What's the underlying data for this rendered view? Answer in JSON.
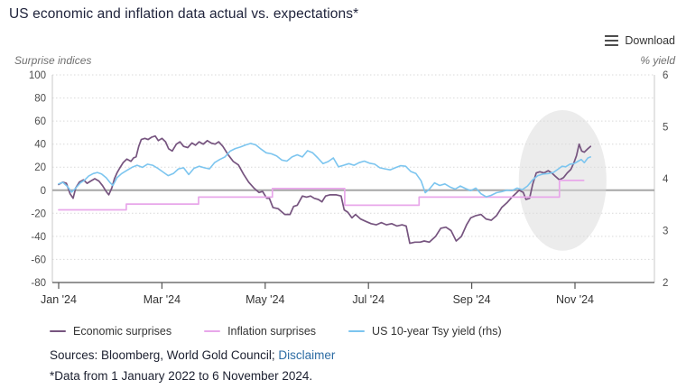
{
  "title": {
    "text": "US economic and inflation data actual vs. expectations*"
  },
  "toolbar": {
    "download_label": "Download"
  },
  "footer": {
    "sources_prefix": "Sources: Bloomberg, World Gold Council; ",
    "disclaimer_link": "Disclaimer",
    "note": "*Data from 1 January 2022 to 6 November 2024."
  },
  "chart_data": {
    "type": "line",
    "title": "US economic and inflation data actual vs. expectations*",
    "x_unit": "months since 1 Jan 2024",
    "x_axis": {
      "tick_months": [
        0,
        2,
        4,
        6,
        8,
        10
      ],
      "labels": [
        "Jan '24",
        "Mar '24",
        "May '24",
        "Jul '24",
        "Sep '24",
        "Nov '24"
      ]
    },
    "y_left": {
      "title": "Surprise indices",
      "min": -80,
      "max": 100,
      "tick_step": 20,
      "zero_line": 0
    },
    "y_right": {
      "title": "% yield",
      "min": 2,
      "max": 6,
      "tick_step": 1
    },
    "grid": "dotted",
    "legend_position": "bottom-left",
    "highlight_ellipse": {
      "cx_month": 9.76,
      "cy_value": 8.5,
      "rx_months": 0.85,
      "ry_values": 61,
      "color": "#d9d9d9",
      "opacity": 0.5
    },
    "series": [
      {
        "name": "Economic surprises",
        "axis": "left",
        "color": "#76547f",
        "width": 1.7,
        "points": [
          [
            0.0,
            5
          ],
          [
            0.08,
            7
          ],
          [
            0.15,
            6
          ],
          [
            0.22,
            -3
          ],
          [
            0.28,
            -7
          ],
          [
            0.33,
            2
          ],
          [
            0.4,
            7
          ],
          [
            0.48,
            9
          ],
          [
            0.55,
            6
          ],
          [
            0.62,
            8
          ],
          [
            0.7,
            10
          ],
          [
            0.78,
            8
          ],
          [
            0.85,
            4
          ],
          [
            0.92,
            -1
          ],
          [
            0.97,
            -4
          ],
          [
            1.03,
            2
          ],
          [
            1.08,
            10
          ],
          [
            1.13,
            15
          ],
          [
            1.18,
            19
          ],
          [
            1.25,
            24
          ],
          [
            1.32,
            27
          ],
          [
            1.4,
            25
          ],
          [
            1.45,
            28
          ],
          [
            1.5,
            29
          ],
          [
            1.55,
            38
          ],
          [
            1.6,
            44
          ],
          [
            1.67,
            45
          ],
          [
            1.73,
            44
          ],
          [
            1.8,
            46
          ],
          [
            1.87,
            47
          ],
          [
            1.93,
            43
          ],
          [
            2.0,
            45
          ],
          [
            2.07,
            42
          ],
          [
            2.13,
            36
          ],
          [
            2.2,
            34
          ],
          [
            2.28,
            40
          ],
          [
            2.35,
            42
          ],
          [
            2.42,
            38
          ],
          [
            2.5,
            37
          ],
          [
            2.58,
            41
          ],
          [
            2.65,
            39
          ],
          [
            2.72,
            42
          ],
          [
            2.8,
            40
          ],
          [
            2.88,
            43
          ],
          [
            2.95,
            41
          ],
          [
            3.03,
            40
          ],
          [
            3.1,
            42
          ],
          [
            3.18,
            38
          ],
          [
            3.28,
            31
          ],
          [
            3.38,
            25
          ],
          [
            3.48,
            22
          ],
          [
            3.58,
            14
          ],
          [
            3.68,
            7
          ],
          [
            3.78,
            2
          ],
          [
            3.88,
            -2
          ],
          [
            3.95,
            -1
          ],
          [
            4.03,
            -7
          ],
          [
            4.08,
            -7
          ],
          [
            4.15,
            -15
          ],
          [
            4.25,
            -16
          ],
          [
            4.38,
            -21
          ],
          [
            4.48,
            -21
          ],
          [
            4.55,
            -14
          ],
          [
            4.62,
            -13
          ],
          [
            4.72,
            -5
          ],
          [
            4.8,
            -6
          ],
          [
            4.88,
            -5
          ],
          [
            4.95,
            -7
          ],
          [
            5.03,
            -8
          ],
          [
            5.1,
            -10
          ],
          [
            5.17,
            -5
          ],
          [
            5.25,
            -4
          ],
          [
            5.38,
            -4
          ],
          [
            5.47,
            -5
          ],
          [
            5.53,
            -17
          ],
          [
            5.6,
            -19
          ],
          [
            5.68,
            -24
          ],
          [
            5.75,
            -21
          ],
          [
            5.85,
            -25
          ],
          [
            5.95,
            -27
          ],
          [
            6.05,
            -29
          ],
          [
            6.15,
            -30
          ],
          [
            6.25,
            -28
          ],
          [
            6.35,
            -30
          ],
          [
            6.45,
            -29
          ],
          [
            6.55,
            -31
          ],
          [
            6.65,
            -30
          ],
          [
            6.73,
            -31
          ],
          [
            6.8,
            -46
          ],
          [
            6.9,
            -45
          ],
          [
            7.0,
            -45
          ],
          [
            7.08,
            -44
          ],
          [
            7.18,
            -45
          ],
          [
            7.3,
            -40
          ],
          [
            7.4,
            -33
          ],
          [
            7.5,
            -32
          ],
          [
            7.6,
            -35
          ],
          [
            7.7,
            -44
          ],
          [
            7.8,
            -40
          ],
          [
            7.9,
            -30
          ],
          [
            7.98,
            -24
          ],
          [
            8.08,
            -22
          ],
          [
            8.18,
            -21
          ],
          [
            8.28,
            -25
          ],
          [
            8.38,
            -26
          ],
          [
            8.48,
            -22
          ],
          [
            8.58,
            -15
          ],
          [
            8.68,
            -11
          ],
          [
            8.78,
            -6
          ],
          [
            8.85,
            -3
          ],
          [
            8.92,
            0
          ],
          [
            9.0,
            -2
          ],
          [
            9.05,
            -8
          ],
          [
            9.12,
            -7
          ],
          [
            9.18,
            5
          ],
          [
            9.25,
            15
          ],
          [
            9.32,
            16
          ],
          [
            9.4,
            15
          ],
          [
            9.48,
            17
          ],
          [
            9.55,
            15
          ],
          [
            9.62,
            12
          ],
          [
            9.7,
            9
          ],
          [
            9.78,
            11
          ],
          [
            9.85,
            15
          ],
          [
            9.92,
            18
          ],
          [
            9.98,
            24
          ],
          [
            10.03,
            30
          ],
          [
            10.08,
            40
          ],
          [
            10.13,
            34
          ],
          [
            10.18,
            33
          ],
          [
            10.25,
            36
          ],
          [
            10.3,
            38
          ]
        ]
      },
      {
        "name": "Inflation surprises",
        "axis": "left",
        "color": "#e8a7ea",
        "width": 1.7,
        "step": true,
        "points": [
          [
            0,
            -17
          ],
          [
            1.31,
            -17
          ],
          [
            1.31,
            -12
          ],
          [
            2.71,
            -12
          ],
          [
            2.71,
            -6
          ],
          [
            4.14,
            -6
          ],
          [
            4.14,
            1.5
          ],
          [
            5.54,
            1.5
          ],
          [
            5.54,
            -13
          ],
          [
            6.98,
            -13
          ],
          [
            6.98,
            -6
          ],
          [
            9.7,
            -6
          ],
          [
            9.7,
            8.5
          ],
          [
            10.17,
            8.5
          ]
        ]
      },
      {
        "name": "US 10-year Tsy yield (rhs)",
        "axis": "right",
        "color": "#7cc5ef",
        "width": 1.6,
        "points": [
          [
            0.0,
            3.9
          ],
          [
            0.08,
            3.93
          ],
          [
            0.17,
            3.85
          ],
          [
            0.25,
            3.74
          ],
          [
            0.33,
            3.82
          ],
          [
            0.42,
            3.92
          ],
          [
            0.5,
            3.97
          ],
          [
            0.58,
            4.05
          ],
          [
            0.67,
            4.1
          ],
          [
            0.75,
            4.12
          ],
          [
            0.83,
            4.09
          ],
          [
            0.92,
            4.02
          ],
          [
            1.0,
            3.92
          ],
          [
            1.05,
            3.87
          ],
          [
            1.13,
            4.02
          ],
          [
            1.22,
            4.1
          ],
          [
            1.32,
            4.16
          ],
          [
            1.42,
            4.22
          ],
          [
            1.52,
            4.26
          ],
          [
            1.62,
            4.22
          ],
          [
            1.72,
            4.28
          ],
          [
            1.82,
            4.26
          ],
          [
            1.92,
            4.2
          ],
          [
            2.02,
            4.13
          ],
          [
            2.12,
            4.06
          ],
          [
            2.22,
            4.1
          ],
          [
            2.32,
            4.19
          ],
          [
            2.42,
            4.21
          ],
          [
            2.52,
            4.08
          ],
          [
            2.62,
            4.2
          ],
          [
            2.72,
            4.24
          ],
          [
            2.82,
            4.21
          ],
          [
            2.92,
            4.19
          ],
          [
            3.02,
            4.31
          ],
          [
            3.12,
            4.37
          ],
          [
            3.22,
            4.42
          ],
          [
            3.32,
            4.53
          ],
          [
            3.42,
            4.58
          ],
          [
            3.52,
            4.61
          ],
          [
            3.62,
            4.65
          ],
          [
            3.72,
            4.68
          ],
          [
            3.82,
            4.65
          ],
          [
            3.92,
            4.57
          ],
          [
            4.02,
            4.5
          ],
          [
            4.12,
            4.48
          ],
          [
            4.22,
            4.44
          ],
          [
            4.32,
            4.36
          ],
          [
            4.42,
            4.34
          ],
          [
            4.52,
            4.42
          ],
          [
            4.62,
            4.46
          ],
          [
            4.72,
            4.42
          ],
          [
            4.82,
            4.54
          ],
          [
            4.92,
            4.5
          ],
          [
            5.02,
            4.4
          ],
          [
            5.12,
            4.29
          ],
          [
            5.22,
            4.33
          ],
          [
            5.32,
            4.4
          ],
          [
            5.42,
            4.23
          ],
          [
            5.52,
            4.26
          ],
          [
            5.62,
            4.29
          ],
          [
            5.72,
            4.26
          ],
          [
            5.82,
            4.31
          ],
          [
            5.92,
            4.34
          ],
          [
            6.02,
            4.3
          ],
          [
            6.12,
            4.28
          ],
          [
            6.22,
            4.21
          ],
          [
            6.32,
            4.19
          ],
          [
            6.42,
            4.17
          ],
          [
            6.52,
            4.21
          ],
          [
            6.62,
            4.25
          ],
          [
            6.72,
            4.24
          ],
          [
            6.82,
            4.14
          ],
          [
            6.92,
            4.1
          ],
          [
            7.02,
            3.96
          ],
          [
            7.1,
            3.73
          ],
          [
            7.18,
            3.8
          ],
          [
            7.28,
            3.92
          ],
          [
            7.38,
            3.87
          ],
          [
            7.48,
            3.9
          ],
          [
            7.58,
            3.84
          ],
          [
            7.68,
            3.8
          ],
          [
            7.78,
            3.86
          ],
          [
            7.88,
            3.81
          ],
          [
            7.98,
            3.77
          ],
          [
            8.08,
            3.82
          ],
          [
            8.18,
            3.71
          ],
          [
            8.28,
            3.65
          ],
          [
            8.38,
            3.68
          ],
          [
            8.48,
            3.73
          ],
          [
            8.58,
            3.75
          ],
          [
            8.68,
            3.78
          ],
          [
            8.78,
            3.77
          ],
          [
            8.88,
            3.82
          ],
          [
            8.98,
            3.79
          ],
          [
            9.08,
            3.86
          ],
          [
            9.18,
            3.98
          ],
          [
            9.28,
            4.06
          ],
          [
            9.38,
            4.09
          ],
          [
            9.48,
            4.1
          ],
          [
            9.58,
            4.12
          ],
          [
            9.68,
            4.19
          ],
          [
            9.75,
            4.24
          ],
          [
            9.82,
            4.23
          ],
          [
            9.9,
            4.28
          ],
          [
            9.98,
            4.29
          ],
          [
            10.05,
            4.33
          ],
          [
            10.12,
            4.37
          ],
          [
            10.18,
            4.31
          ],
          [
            10.25,
            4.4
          ],
          [
            10.3,
            4.42
          ]
        ]
      }
    ],
    "colors": {
      "grid": "#d9d9d9",
      "zero_line": "#a6a6a6",
      "side_axis": "#c9c9c9",
      "bottom_axis": "#555555",
      "tick_text": "#4d4d4d",
      "x_label_text": "#333333",
      "axis_title_text": "#707070"
    }
  }
}
